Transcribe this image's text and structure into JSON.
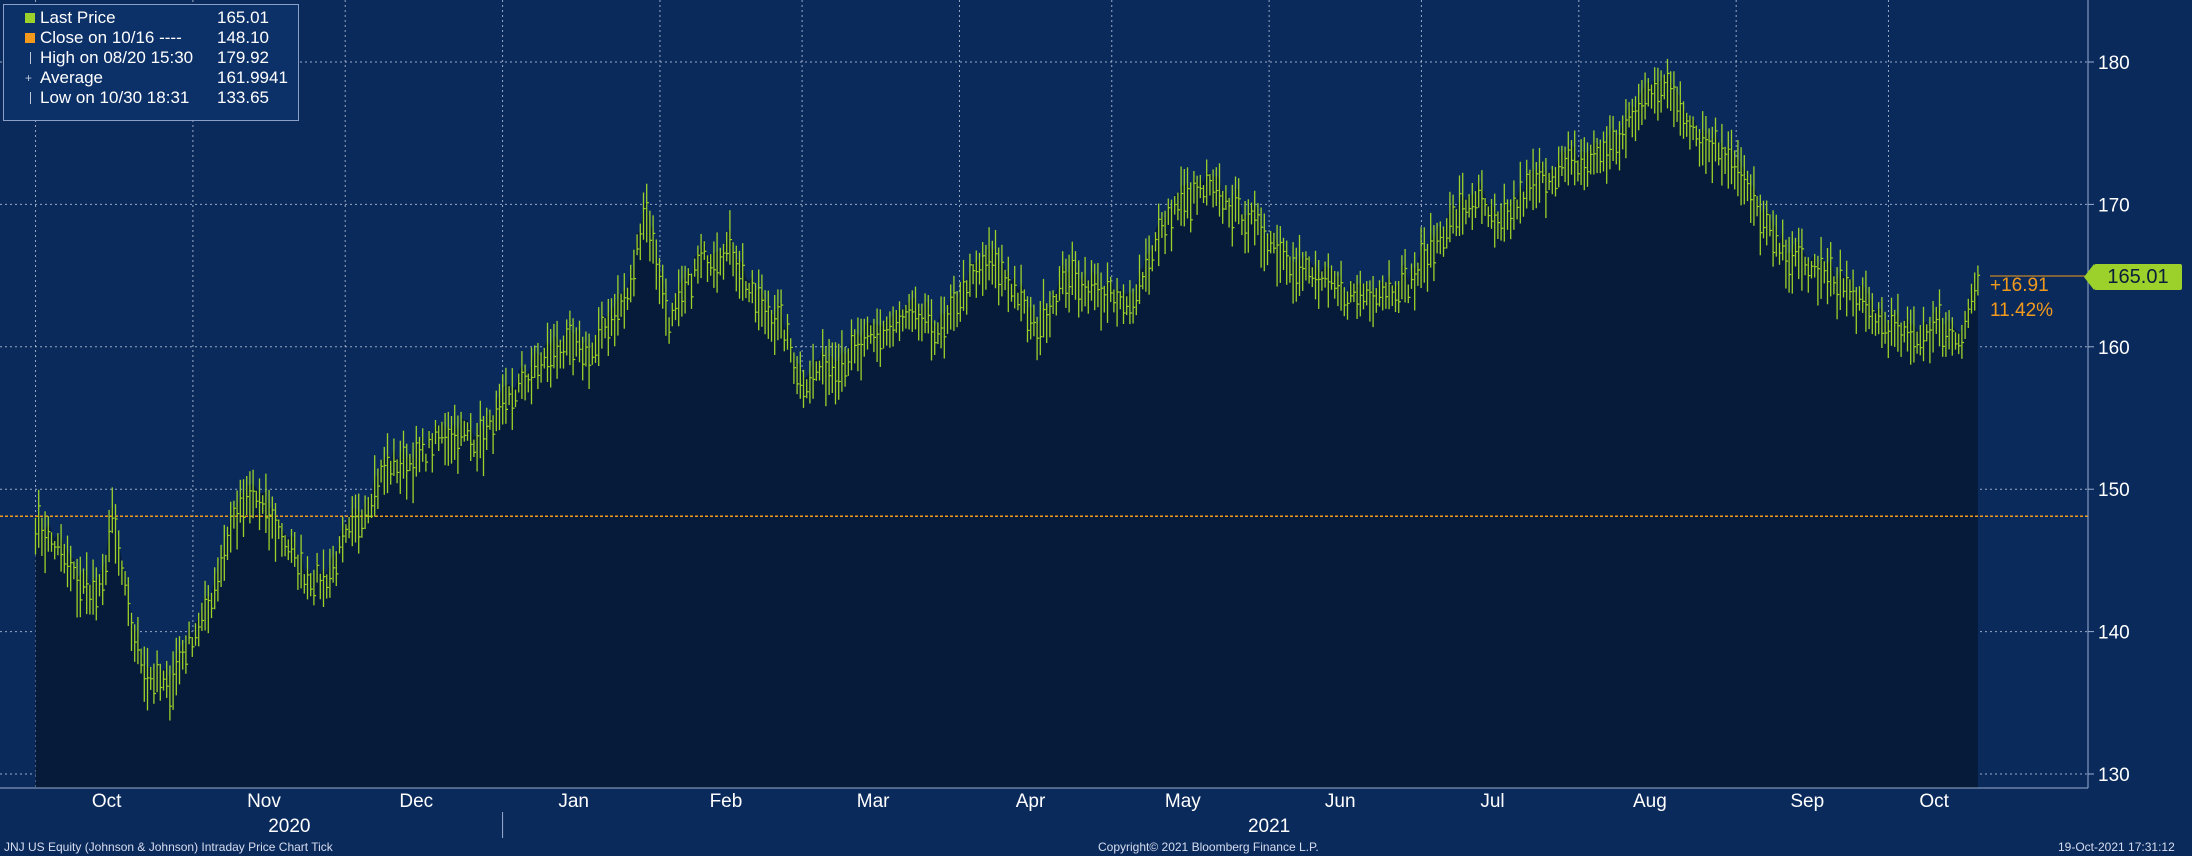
{
  "chart_data": {
    "type": "line",
    "title": "JNJ US Equity (Johnson & Johnson) Intraday Price Chart  Tick",
    "ylim": [
      130,
      184
    ],
    "y_ticks": [
      130,
      140,
      150,
      160,
      170,
      180
    ],
    "grid": true,
    "month_labels": [
      "Oct",
      "Nov",
      "Dec",
      "Jan",
      "Feb",
      "Mar",
      "Apr",
      "May",
      "Jun",
      "Jul",
      "Aug",
      "Sep",
      "Oct"
    ],
    "year_labels": [
      "2020",
      "2021"
    ],
    "close_reference": 148.1,
    "series": [
      {
        "name": "Last Price",
        "color": "#9bd12a",
        "dates": [
          "2020-10-01",
          "2020-10-06",
          "2020-10-09",
          "2020-10-14",
          "2020-10-16",
          "2020-10-20",
          "2020-10-23",
          "2020-10-27",
          "2020-10-30",
          "2020-11-04",
          "2020-11-09",
          "2020-11-13",
          "2020-11-18",
          "2020-11-23",
          "2020-11-27",
          "2020-12-03",
          "2020-12-09",
          "2020-12-15",
          "2020-12-21",
          "2020-12-28",
          "2021-01-05",
          "2021-01-12",
          "2021-01-19",
          "2021-01-22",
          "2021-01-26",
          "2021-01-29",
          "2021-02-03",
          "2021-02-09",
          "2021-02-15",
          "2021-02-19",
          "2021-02-25",
          "2021-03-01",
          "2021-03-05",
          "2021-03-11",
          "2021-03-17",
          "2021-03-23",
          "2021-03-29",
          "2021-04-01",
          "2021-04-07",
          "2021-04-12",
          "2021-04-16",
          "2021-04-22",
          "2021-04-28",
          "2021-05-04",
          "2021-05-10",
          "2021-05-14",
          "2021-05-20",
          "2021-05-26",
          "2021-06-01",
          "2021-06-07",
          "2021-06-11",
          "2021-06-17",
          "2021-06-23",
          "2021-06-29",
          "2021-07-06",
          "2021-07-12",
          "2021-07-16",
          "2021-07-22",
          "2021-07-28",
          "2021-08-03",
          "2021-08-09",
          "2021-08-16",
          "2021-08-20",
          "2021-08-25",
          "2021-08-31",
          "2021-09-03",
          "2021-09-09",
          "2021-09-15",
          "2021-09-21",
          "2021-09-27",
          "2021-09-30",
          "2021-10-05",
          "2021-10-11",
          "2021-10-15",
          "2021-10-19"
        ],
        "values": [
          147.5,
          145.5,
          143.5,
          142.5,
          148.1,
          140.0,
          137.0,
          136.0,
          138.5,
          141.5,
          148.0,
          149.5,
          147.0,
          144.0,
          143.5,
          147.5,
          151.5,
          152.0,
          154.0,
          153.5,
          157.5,
          160.0,
          159.5,
          162.0,
          163.5,
          170.0,
          161.5,
          166.0,
          167.0,
          163.5,
          161.5,
          157.5,
          158.5,
          159.5,
          161.0,
          162.0,
          161.0,
          163.5,
          166.0,
          164.0,
          161.0,
          165.0,
          164.0,
          162.5,
          167.5,
          170.0,
          171.0,
          169.5,
          167.5,
          165.5,
          164.5,
          163.5,
          164.0,
          164.5,
          168.5,
          170.5,
          168.0,
          171.0,
          172.5,
          173.0,
          174.5,
          178.5,
          177.5,
          174.5,
          173.5,
          171.0,
          167.0,
          165.5,
          164.5,
          162.5,
          161.5,
          160.5,
          161.5,
          160.5,
          165.01
        ]
      }
    ]
  },
  "legend": {
    "rows": [
      {
        "label": "Last Price",
        "value": "165.01"
      },
      {
        "label": "Close on 10/16 ----",
        "value": "148.10"
      },
      {
        "label": "High on 08/20 15:30",
        "value": "179.92"
      },
      {
        "label": "Average",
        "value": "161.9941"
      },
      {
        "label": "Low on 10/30 18:31",
        "value": "133.65"
      }
    ]
  },
  "last_price_badge": "165.01",
  "change_abs": "+16.91",
  "change_pct": "11.42%",
  "footer": {
    "left": "JNJ US Equity (Johnson & Johnson) Intraday Price Chart  Tick",
    "center": "Copyright© 2021 Bloomberg Finance L.P.",
    "right": "19-Oct-2021 17:31:12"
  },
  "colors": {
    "background": "#0a2a5c",
    "plot_fill": "#061b3a",
    "price_line": "#9bd12a",
    "close_line": "#f39a1c",
    "grid": "#c9d3e6"
  }
}
